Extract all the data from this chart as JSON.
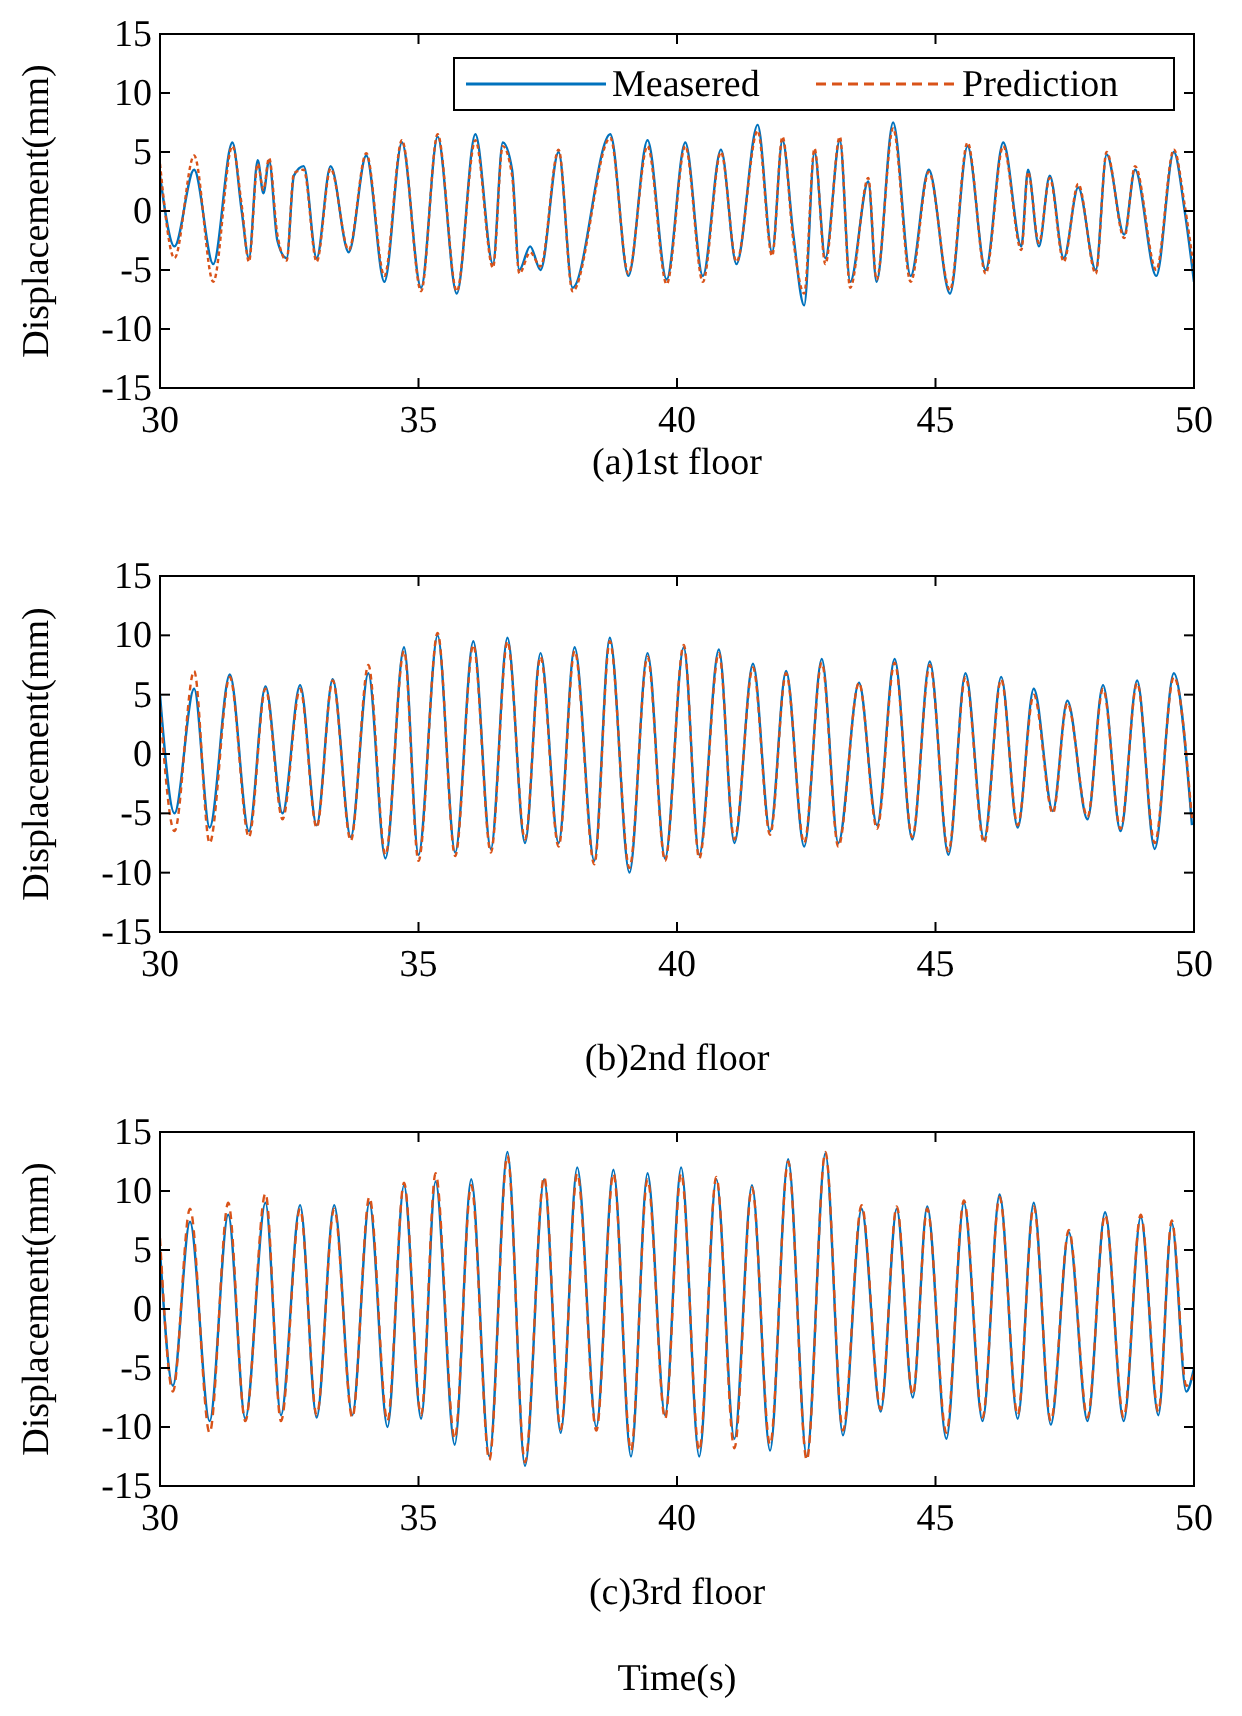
{
  "chart_data": [
    {
      "type": "line",
      "title": "(a)1st floor",
      "ylabel": "Displacement(mm)",
      "xlim": [
        30,
        50
      ],
      "ylim": [
        -15,
        15
      ],
      "xticks": [
        30,
        35,
        40,
        45,
        50
      ],
      "yticks": [
        -15,
        -10,
        -5,
        0,
        5,
        10,
        15
      ],
      "grid": false,
      "legend": "top right",
      "marker": "none",
      "x": [
        30,
        30.28,
        30.66,
        31.03,
        31.4,
        31.58,
        31.72,
        31.89,
        32,
        32.11,
        32.27,
        32.45,
        32.59,
        32.78,
        33.03,
        33.3,
        33.65,
        33.99,
        34.34,
        34.68,
        35.05,
        35.37,
        35.74,
        36.1,
        36.44,
        36.63,
        36.81,
        36.95,
        37.16,
        37.36,
        37.71,
        37.98,
        38.71,
        39.06,
        39.43,
        39.8,
        40.16,
        40.5,
        40.85,
        41.15,
        41.56,
        41.84,
        42.04,
        42.25,
        42.46,
        42.66,
        42.87,
        43.15,
        43.35,
        43.7,
        43.86,
        44.18,
        44.52,
        44.87,
        45.28,
        45.62,
        45.97,
        46.31,
        46.66,
        46.79,
        47,
        47.21,
        47.48,
        47.76,
        48.1,
        48.31,
        48.65,
        48.86,
        49.27,
        49.61,
        49.82,
        50
      ],
      "series": [
        {
          "name": "Measered",
          "color": "#0072bd",
          "line_style": "solid",
          "values": [
            3,
            -3,
            3.5,
            -4.5,
            5.8,
            0,
            -4,
            4.3,
            1.5,
            4.3,
            -2.5,
            -4,
            3,
            3.8,
            -4,
            3.8,
            -3.5,
            4.7,
            -6,
            5.8,
            -6.5,
            6.3,
            -7,
            6.5,
            -4.5,
            5.8,
            3.5,
            -5,
            -3,
            -5,
            5,
            -6.5,
            6.5,
            -5.5,
            6,
            -5.8,
            5.8,
            -5.5,
            5.2,
            -4.5,
            7.3,
            -3.5,
            6,
            -2,
            -8,
            5,
            -4,
            6,
            -6,
            2.5,
            -6,
            7.5,
            -5.5,
            3.5,
            -7,
            5.5,
            -5,
            5.8,
            -3,
            3.5,
            -3,
            3,
            -4,
            2,
            -5,
            4.8,
            -2,
            3.5,
            -5.5,
            5,
            0,
            -6
          ]
        },
        {
          "name": "Prediction",
          "color": "#d95319",
          "line_style": "dashed",
          "values": [
            4,
            -4,
            4.7,
            -6,
            5.5,
            0.5,
            -4.3,
            4,
            1.8,
            4.5,
            -2,
            -4.2,
            3.2,
            3.5,
            -4.3,
            3.6,
            -3.3,
            4.9,
            -5.5,
            6,
            -6.8,
            6.5,
            -6.8,
            6,
            -4.8,
            5.5,
            3,
            -5.3,
            -3.5,
            -4.7,
            5.2,
            -6.8,
            6.2,
            -5.3,
            5.5,
            -6.2,
            5.5,
            -6,
            5,
            -4.3,
            6.8,
            -3.8,
            6.3,
            -2.5,
            -7,
            5.3,
            -4.5,
            6.3,
            -6.5,
            2.8,
            -5.8,
            7,
            -6,
            3.3,
            -6.7,
            5.8,
            -5.3,
            5.5,
            -3.3,
            3.3,
            -2.7,
            2.8,
            -4.3,
            2.3,
            -5.3,
            5,
            -2.3,
            3.8,
            -5,
            5.2,
            0.5,
            -5
          ]
        }
      ]
    },
    {
      "type": "line",
      "title": "(b)2nd floor",
      "ylabel": "Displacement(mm)",
      "xlim": [
        30,
        50
      ],
      "ylim": [
        -15,
        15
      ],
      "xticks": [
        30,
        35,
        40,
        45,
        50
      ],
      "yticks": [
        -15,
        -10,
        -5,
        0,
        5,
        10,
        15
      ],
      "grid": false,
      "marker": "none",
      "x": [
        30,
        30.28,
        30.66,
        30.96,
        31.35,
        31.72,
        32.04,
        32.37,
        32.71,
        33.03,
        33.34,
        33.69,
        34.03,
        34.36,
        34.72,
        35,
        35.37,
        35.71,
        36.06,
        36.4,
        36.72,
        37.06,
        37.36,
        37.71,
        38.02,
        38.4,
        38.7,
        39.08,
        39.43,
        39.77,
        40.13,
        40.43,
        40.81,
        41.11,
        41.47,
        41.8,
        42.11,
        42.46,
        42.8,
        43.12,
        43.52,
        43.87,
        44.21,
        44.55,
        44.89,
        45.25,
        45.58,
        45.94,
        46.27,
        46.59,
        46.9,
        47.27,
        47.55,
        47.94,
        48.24,
        48.58,
        48.9,
        49.24,
        49.61,
        49.96
      ],
      "series": [
        {
          "color": "#0072bd",
          "line_style": "solid",
          "values": [
            5,
            -5,
            5.5,
            -6.2,
            6.7,
            -6.5,
            5.7,
            -5,
            5.8,
            -6,
            6.3,
            -7,
            6.8,
            -8.8,
            9,
            -8.5,
            10,
            -8.3,
            9.5,
            -8,
            9.8,
            -7.5,
            8.5,
            -7.5,
            9,
            -9,
            9.8,
            -10,
            8.5,
            -8.8,
            9,
            -8.5,
            8.8,
            -7.5,
            7.6,
            -6.5,
            7,
            -7.8,
            8,
            -7.5,
            6,
            -6,
            8,
            -7.2,
            7.8,
            -8.5,
            6.8,
            -7.2,
            6.5,
            -6.2,
            5.5,
            -4.8,
            4.5,
            -5.5,
            5.8,
            -6.5,
            6.2,
            -8,
            6.8,
            -6
          ]
        },
        {
          "color": "#d95319",
          "line_style": "dashed",
          "values": [
            4,
            -6.5,
            7,
            -7.5,
            6.5,
            -7,
            5.5,
            -5.5,
            5.5,
            -6.2,
            6.2,
            -7.3,
            7.5,
            -8.5,
            8.7,
            -9,
            10.2,
            -8.6,
            9.2,
            -8.3,
            9.5,
            -7.2,
            8.2,
            -7.8,
            8.7,
            -9.3,
            9.5,
            -9.6,
            8.2,
            -9,
            9.2,
            -8.8,
            8.5,
            -7.2,
            7.3,
            -6.8,
            6.8,
            -7.5,
            7.7,
            -7.8,
            6,
            -6.3,
            7.7,
            -7,
            7.5,
            -8.2,
            6.5,
            -7.5,
            6.3,
            -6,
            5,
            -5,
            4.3,
            -5.3,
            5.5,
            -6.3,
            6,
            -7.5,
            6.5,
            -5.5
          ]
        }
      ]
    },
    {
      "type": "line",
      "title": "(c)3rd floor",
      "xlabel": "Time(s)",
      "ylabel": "Displacement(mm)",
      "xlim": [
        30,
        50
      ],
      "ylim": [
        -15,
        15
      ],
      "xticks": [
        30,
        35,
        40,
        45,
        50
      ],
      "yticks": [
        -15,
        -10,
        -5,
        0,
        5,
        10,
        15
      ],
      "grid": false,
      "marker": "none",
      "x": [
        30,
        30.25,
        30.58,
        30.96,
        31.32,
        31.65,
        32.04,
        32.34,
        32.71,
        33.03,
        33.37,
        33.72,
        34.05,
        34.4,
        34.72,
        35.05,
        35.33,
        35.7,
        36.02,
        36.37,
        36.72,
        37.06,
        37.43,
        37.75,
        38.07,
        38.44,
        38.77,
        39.11,
        39.43,
        39.77,
        40.08,
        40.43,
        40.76,
        41.11,
        41.45,
        41.8,
        42.15,
        42.51,
        42.87,
        43.21,
        43.57,
        43.94,
        44.25,
        44.56,
        44.84,
        45.21,
        45.55,
        45.91,
        46.24,
        46.59,
        46.9,
        47.23,
        47.58,
        47.94,
        48.28,
        48.64,
        48.97,
        49.31,
        49.57,
        49.85,
        50
      ],
      "series": [
        {
          "color": "#0072bd",
          "line_style": "solid",
          "values": [
            5,
            -6.5,
            7.4,
            -9.5,
            8,
            -9.3,
            9,
            -9,
            8.8,
            -9.2,
            8.8,
            -9,
            9,
            -10,
            10.5,
            -9.3,
            10.8,
            -11.5,
            11,
            -12.5,
            13.3,
            -13.3,
            11,
            -10.5,
            12,
            -10,
            11.8,
            -12.5,
            11.5,
            -9,
            12,
            -12.5,
            11,
            -11,
            10.5,
            -12,
            12.7,
            -12.5,
            13.2,
            -10.7,
            8.5,
            -8.7,
            8.5,
            -7.5,
            8.7,
            -11,
            9,
            -9.5,
            9.7,
            -9.3,
            9,
            -9.8,
            6.5,
            -9.5,
            8.2,
            -9.5,
            7.8,
            -9,
            7.3,
            -7,
            -5
          ]
        },
        {
          "color": "#d95319",
          "line_style": "dashed",
          "values": [
            6,
            -7,
            8.5,
            -10.5,
            9,
            -9.5,
            9.8,
            -9.5,
            8.5,
            -9,
            8.5,
            -9.2,
            9.5,
            -9.5,
            10.7,
            -9,
            11.5,
            -11,
            10.5,
            -12.8,
            13,
            -13,
            11.2,
            -10.2,
            11.5,
            -10.3,
            11.5,
            -12,
            11,
            -9.3,
            11.5,
            -12,
            11.2,
            -11.8,
            10.3,
            -11.5,
            12.5,
            -12.8,
            13.3,
            -10.3,
            8.8,
            -8.5,
            8.7,
            -7.3,
            8.5,
            -10.5,
            9.2,
            -9.2,
            9.5,
            -9,
            8.7,
            -9.5,
            6.7,
            -9.2,
            8,
            -9.2,
            8,
            -8.7,
            7.5,
            -6.5,
            -5.5
          ]
        }
      ]
    }
  ]
}
